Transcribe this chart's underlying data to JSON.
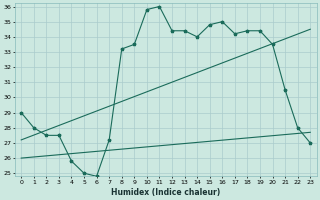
{
  "xlabel": "Humidex (Indice chaleur)",
  "bg_color": "#cce8e0",
  "grid_color": "#aacccc",
  "line_color": "#1a6b5a",
  "ylim": [
    24.8,
    36.2
  ],
  "xlim": [
    -0.5,
    23.5
  ],
  "yticks": [
    25,
    26,
    27,
    28,
    29,
    30,
    31,
    32,
    33,
    34,
    35,
    36
  ],
  "xticks": [
    0,
    1,
    2,
    3,
    4,
    5,
    6,
    7,
    8,
    9,
    10,
    11,
    12,
    13,
    14,
    15,
    16,
    17,
    18,
    19,
    20,
    21,
    22,
    23
  ],
  "series1_x": [
    0,
    1,
    2,
    3,
    4,
    5,
    6,
    7,
    8,
    9,
    10,
    11,
    12,
    13,
    14,
    15,
    16,
    17,
    18,
    19,
    20,
    21,
    22,
    23
  ],
  "series1_y": [
    29,
    28,
    27.5,
    27.5,
    25.8,
    25.0,
    24.8,
    27.2,
    33.2,
    33.5,
    35.8,
    36.0,
    34.4,
    34.4,
    34.0,
    34.8,
    35.0,
    34.2,
    34.4,
    34.4,
    33.5,
    30.5,
    28.0,
    27.0
  ],
  "series2_x": [
    0,
    23
  ],
  "series2_y": [
    27.2,
    34.5
  ],
  "series3_x": [
    0,
    23
  ],
  "series3_y": [
    26.0,
    27.7
  ],
  "marker_x": [
    0,
    1,
    2,
    3,
    4,
    5,
    6,
    7,
    8,
    9,
    10,
    11,
    12,
    13,
    14,
    15,
    16,
    17,
    18,
    19,
    20,
    21,
    22,
    23
  ],
  "marker_y": [
    29,
    28,
    27.5,
    27.5,
    25.8,
    25.0,
    24.8,
    27.2,
    33.2,
    33.5,
    35.8,
    36.0,
    34.4,
    34.4,
    34.0,
    34.8,
    35.0,
    34.2,
    34.4,
    34.4,
    33.5,
    30.5,
    28.0,
    27.0
  ]
}
